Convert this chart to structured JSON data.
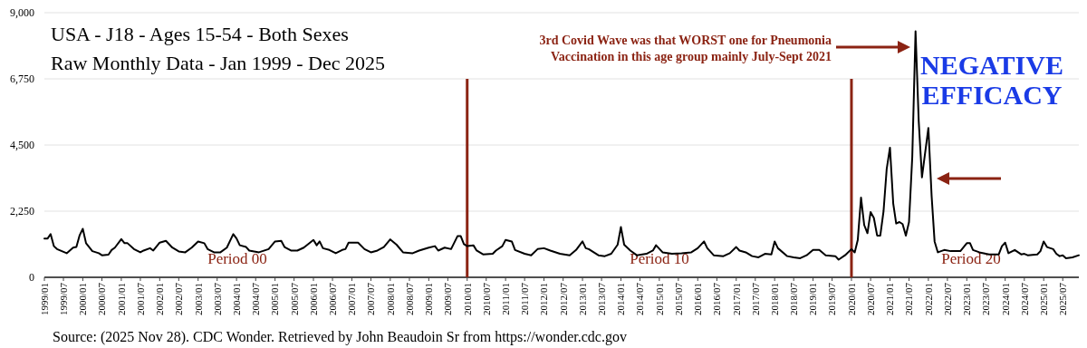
{
  "chart_data": {
    "type": "line",
    "title": "USA - J18 - Ages 15-54 - Both Sexes",
    "subtitle": "Raw Monthly Data - Jan 1999 - Dec 2025",
    "annotations": [
      "3rd Covid Wave was that WORST one for Pneumonia\nVaccination in this age group mainly July-Sept 2021",
      "NEGATIVE EFFICACY",
      "Period 00",
      "Period 10",
      "Period 20",
      "Source: (2025 Nov 28). CDC Wonder. Retrieved by John Beaudoin Sr from https://wonder.cdc.gov"
    ],
    "series": [
      {
        "color": "#000000",
        "x": [
          "1999-01",
          "1999-02",
          "1999-03",
          "1999-04",
          "1999-05",
          "1999-08",
          "1999-10",
          "1999-11",
          "1999-12",
          "2000-01",
          "2000-02",
          "2000-04",
          "2000-06",
          "2000-07",
          "2000-09",
          "2000-10",
          "2000-11",
          "2001-01",
          "2001-02",
          "2001-03",
          "2001-05",
          "2001-07",
          "2001-08",
          "2001-10",
          "2001-11",
          "2002-01",
          "2002-03",
          "2002-05",
          "2002-07",
          "2002-09",
          "2002-11",
          "2003-01",
          "2003-03",
          "2003-04",
          "2003-06",
          "2003-08",
          "2003-10",
          "2003-12",
          "2004-01",
          "2004-02",
          "2004-04",
          "2004-05",
          "2004-08",
          "2004-11",
          "2005-01",
          "2005-03",
          "2005-04",
          "2005-06",
          "2005-08",
          "2005-10",
          "2006-01",
          "2006-02",
          "2006-03",
          "2006-04",
          "2006-06",
          "2006-08",
          "2006-10",
          "2006-11",
          "2006-12",
          "2007-03",
          "2007-05",
          "2007-07",
          "2007-09",
          "2007-11",
          "2008-01",
          "2008-03",
          "2008-05",
          "2008-08",
          "2008-10",
          "2009-01",
          "2009-03",
          "2009-04",
          "2009-06",
          "2009-08",
          "2009-10",
          "2009-11",
          "2009-12",
          "2010-01",
          "2010-03",
          "2010-04",
          "2010-06",
          "2010-09",
          "2010-10",
          "2010-12",
          "2011-01",
          "2011-03",
          "2011-04",
          "2011-07",
          "2011-09",
          "2011-11",
          "2012-01",
          "2012-03",
          "2012-06",
          "2012-09",
          "2012-11",
          "2013-01",
          "2013-02",
          "2013-03",
          "2013-06",
          "2013-08",
          "2013-10",
          "2013-12",
          "2014-01",
          "2014-02",
          "2014-04",
          "2014-06",
          "2014-09",
          "2014-11",
          "2014-12",
          "2015-02",
          "2015-05",
          "2015-08",
          "2015-11",
          "2016-01",
          "2016-03",
          "2016-04",
          "2016-06",
          "2016-09",
          "2016-11",
          "2017-01",
          "2017-02",
          "2017-04",
          "2017-06",
          "2017-08",
          "2017-10",
          "2017-12",
          "2018-01",
          "2018-02",
          "2018-05",
          "2018-07",
          "2018-09",
          "2018-11",
          "2019-01",
          "2019-03",
          "2019-05",
          "2019-08",
          "2019-09",
          "2019-11",
          "2020-01",
          "2020-02",
          "2020-03",
          "2020-04",
          "2020-05",
          "2020-06",
          "2020-07",
          "2020-08",
          "2020-09",
          "2020-10",
          "2020-11",
          "2020-12",
          "2021-01",
          "2021-02",
          "2021-03",
          "2021-04",
          "2021-05",
          "2021-06",
          "2021-07",
          "2021-08",
          "2021-09",
          "2021-10",
          "2021-11",
          "2022-01",
          "2022-02",
          "2022-03",
          "2022-04",
          "2022-06",
          "2022-08",
          "2022-11",
          "2023-01",
          "2023-02",
          "2023-03",
          "2023-05",
          "2023-08",
          "2023-11",
          "2023-12",
          "2024-01",
          "2024-02",
          "2024-04",
          "2024-06",
          "2024-07",
          "2024-08",
          "2024-11",
          "2024-12",
          "2025-01",
          "2025-02",
          "2025-04",
          "2025-05",
          "2025-06",
          "2025-07",
          "2025-08",
          "2025-10",
          "2025-12"
        ],
        "values": [
          1320,
          1320,
          1470,
          1060,
          960,
          820,
          1010,
          1030,
          1420,
          1650,
          1160,
          890,
          820,
          750,
          770,
          930,
          1010,
          1300,
          1160,
          1160,
          960,
          850,
          910,
          990,
          910,
          1180,
          1240,
          1010,
          880,
          850,
          1010,
          1220,
          1160,
          960,
          850,
          850,
          1010,
          1470,
          1320,
          1090,
          1030,
          910,
          850,
          960,
          1220,
          1240,
          1030,
          910,
          910,
          1010,
          1270,
          1090,
          1220,
          990,
          930,
          820,
          930,
          960,
          1180,
          1180,
          960,
          850,
          910,
          1030,
          1290,
          1110,
          850,
          820,
          910,
          1010,
          1060,
          910,
          1010,
          960,
          1400,
          1400,
          1130,
          1060,
          1090,
          910,
          780,
          800,
          910,
          1060,
          1270,
          1220,
          930,
          800,
          750,
          960,
          990,
          910,
          800,
          750,
          930,
          1220,
          990,
          960,
          750,
          720,
          800,
          1110,
          1710,
          1110,
          910,
          750,
          800,
          910,
          1090,
          850,
          800,
          820,
          850,
          990,
          1220,
          990,
          750,
          720,
          820,
          1030,
          910,
          850,
          720,
          680,
          800,
          780,
          1220,
          990,
          720,
          680,
          650,
          750,
          930,
          930,
          750,
          720,
          600,
          750,
          960,
          850,
          1270,
          2710,
          1780,
          1500,
          2220,
          2020,
          1420,
          1420,
          2250,
          3690,
          4410,
          2510,
          1830,
          1880,
          1810,
          1420,
          1880,
          4100,
          8370,
          5330,
          3400,
          5080,
          2760,
          1220,
          850,
          930,
          890,
          890,
          1160,
          1160,
          930,
          850,
          780,
          780,
          1060,
          1180,
          820,
          930,
          780,
          800,
          750,
          780,
          890,
          1220,
          1030,
          960,
          800,
          720,
          750,
          650,
          680,
          750
        ]
      }
    ],
    "xlim": [
      "1999-01",
      "2025-12"
    ],
    "xticks": [
      {
        "value": "1999-01",
        "label": "1999/01"
      },
      {
        "value": "1999-07",
        "label": "1999/07"
      },
      {
        "value": "2000-01",
        "label": "2000/01"
      },
      {
        "value": "2000-07",
        "label": "2000/07"
      },
      {
        "value": "2001-01",
        "label": "2001/01"
      },
      {
        "value": "2001-07",
        "label": "2001/07"
      },
      {
        "value": "2002-01",
        "label": "2002/01"
      },
      {
        "value": "2002-07",
        "label": "2002/07"
      },
      {
        "value": "2003-01",
        "label": "2003/01"
      },
      {
        "value": "2003-07",
        "label": "2003/07"
      },
      {
        "value": "2004-01",
        "label": "2004/01"
      },
      {
        "value": "2004-07",
        "label": "2004/07"
      },
      {
        "value": "2005-01",
        "label": "2005/01"
      },
      {
        "value": "2005-07",
        "label": "2005/07"
      },
      {
        "value": "2006-01",
        "label": "2006/01"
      },
      {
        "value": "2006-07",
        "label": "2006/07"
      },
      {
        "value": "2007-01",
        "label": "2007/01"
      },
      {
        "value": "2007-07",
        "label": "2007/07"
      },
      {
        "value": "2008-01",
        "label": "2008/01"
      },
      {
        "value": "2008-07",
        "label": "2008/07"
      },
      {
        "value": "2009-01",
        "label": "2009/01"
      },
      {
        "value": "2009-07",
        "label": "2009/07"
      },
      {
        "value": "2010-01",
        "label": "2010/01"
      },
      {
        "value": "2010-07",
        "label": "2010/07"
      },
      {
        "value": "2011-01",
        "label": "2011/01"
      },
      {
        "value": "2011-07",
        "label": "2011/07"
      },
      {
        "value": "2012-01",
        "label": "2012/01"
      },
      {
        "value": "2012-07",
        "label": "2012/07"
      },
      {
        "value": "2013-01",
        "label": "2013/01"
      },
      {
        "value": "2013-07",
        "label": "2013/07"
      },
      {
        "value": "2014-01",
        "label": "2014/01"
      },
      {
        "value": "2014-07",
        "label": "2014/07"
      },
      {
        "value": "2015-01",
        "label": "2015/01"
      },
      {
        "value": "2015-07",
        "label": "2015/07"
      },
      {
        "value": "2016-01",
        "label": "2016/01"
      },
      {
        "value": "2016-07",
        "label": "2016/07"
      },
      {
        "value": "2017-01",
        "label": "2017/01"
      },
      {
        "value": "2017-07",
        "label": "2017/07"
      },
      {
        "value": "2018-01",
        "label": "2018/01"
      },
      {
        "value": "2018-07",
        "label": "2018/07"
      },
      {
        "value": "2019-01",
        "label": "2019/01"
      },
      {
        "value": "2019-07",
        "label": "2019/07"
      },
      {
        "value": "2020-01",
        "label": "2020/01"
      },
      {
        "value": "2020-07",
        "label": "2020/07"
      },
      {
        "value": "2021-01",
        "label": "2021/01"
      },
      {
        "value": "2021-07",
        "label": "2021/07"
      },
      {
        "value": "2022-01",
        "label": "2022/01"
      },
      {
        "value": "2022-07",
        "label": "2022/07"
      },
      {
        "value": "2023-01",
        "label": "2023/01"
      },
      {
        "value": "2023-07",
        "label": "2023/07"
      },
      {
        "value": "2024-01",
        "label": "2024/01"
      },
      {
        "value": "2024-07",
        "label": "2024/07"
      },
      {
        "value": "2025-01",
        "label": "2025/01"
      },
      {
        "value": "2025-07",
        "label": "2025/07"
      }
    ],
    "ylim": [
      0,
      9000
    ],
    "yticks": [
      0,
      {
        "value": 2250,
        "label": "2,250"
      },
      {
        "value": 4500,
        "label": "4,500"
      },
      {
        "value": 6750,
        "label": "6,750"
      },
      {
        "value": 9000,
        "label": "9,000"
      }
    ],
    "ref_lines": [
      {
        "axis": "x",
        "value": "2010-01",
        "color": "#8b2313"
      },
      {
        "axis": "x",
        "value": "2020-01",
        "color": "#8b2313"
      }
    ],
    "grid": "y",
    "marker": "none",
    "line_style": "solid"
  }
}
